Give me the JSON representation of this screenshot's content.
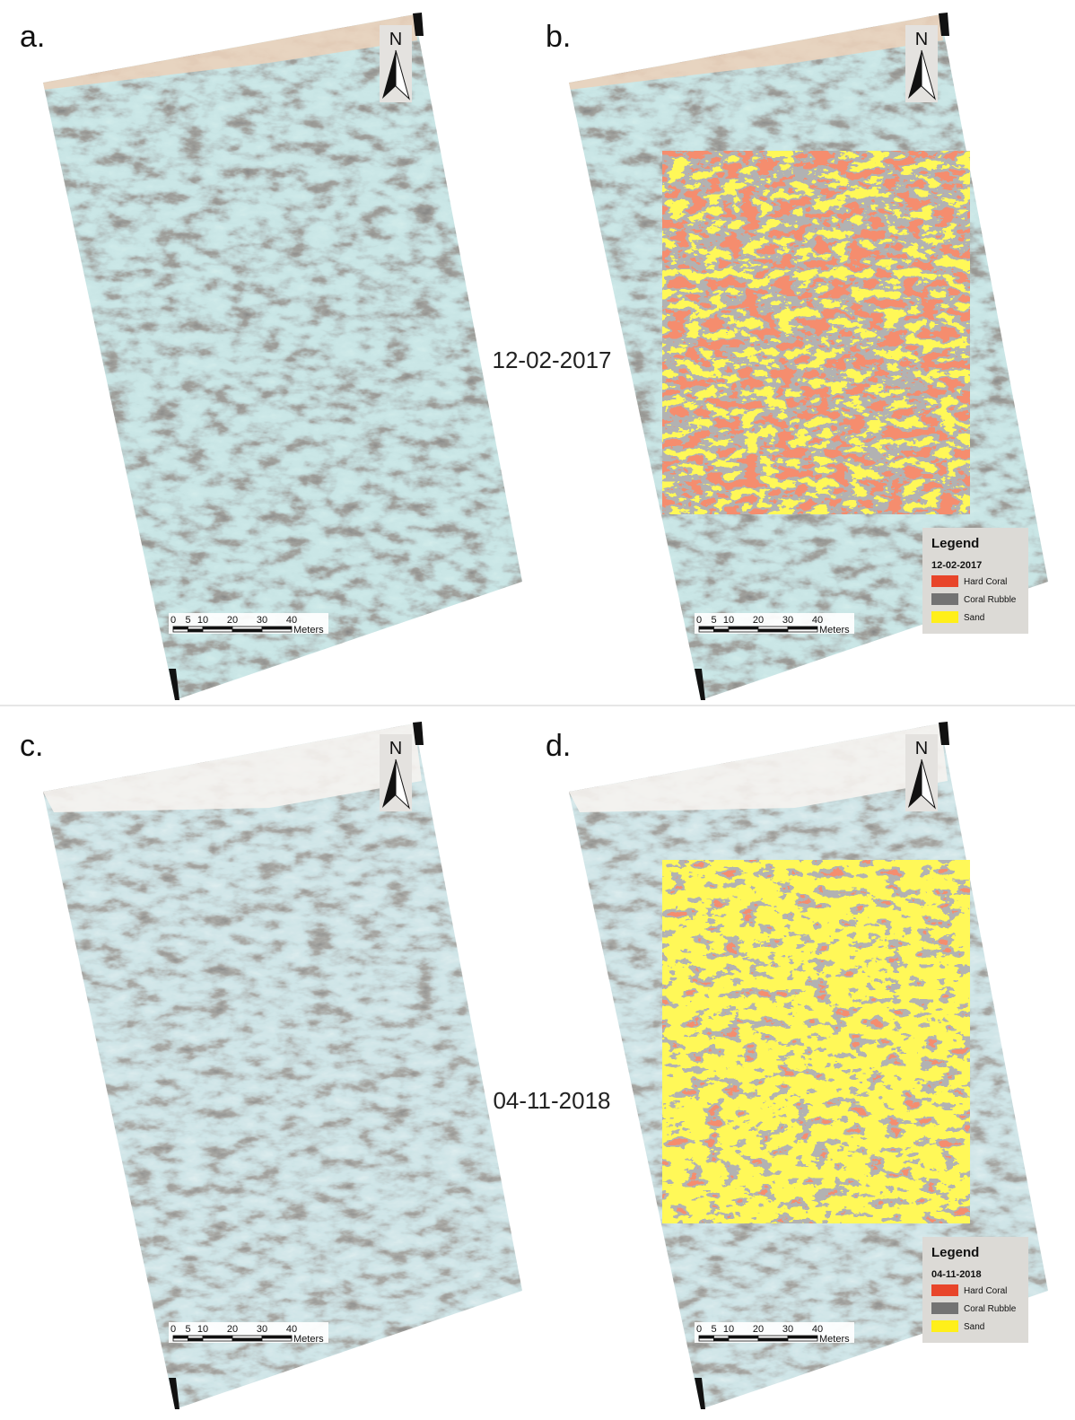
{
  "panels": [
    {
      "label": "a.",
      "north": "N",
      "scale": {
        "ticks": [
          0,
          5,
          10,
          20,
          30,
          40
        ],
        "unit": "Meters"
      }
    },
    {
      "label": "b.",
      "north": "N",
      "scale": {
        "ticks": [
          0,
          5,
          10,
          20,
          30,
          40
        ],
        "unit": "Meters"
      },
      "legend": {
        "title": "Legend",
        "date": "12-02-2017",
        "items": [
          {
            "name": "Hard Coral",
            "color": "#e8452a"
          },
          {
            "name": "Coral Rubble",
            "color": "#737373"
          },
          {
            "name": "Sand",
            "color": "#ffef1a"
          }
        ]
      }
    },
    {
      "label": "c.",
      "north": "N",
      "scale": {
        "ticks": [
          0,
          5,
          10,
          20,
          30,
          40
        ],
        "unit": "Meters"
      }
    },
    {
      "label": "d.",
      "north": "N",
      "scale": {
        "ticks": [
          0,
          5,
          10,
          20,
          30,
          40
        ],
        "unit": "Meters"
      },
      "legend": {
        "title": "Legend",
        "date": "04-11-2018",
        "items": [
          {
            "name": "Hard Coral",
            "color": "#e8452a"
          },
          {
            "name": "Coral Rubble",
            "color": "#737373"
          },
          {
            "name": "Sand",
            "color": "#ffef1a"
          }
        ]
      }
    }
  ],
  "dates": [
    "12-02-2017",
    "04-11-2018"
  ]
}
